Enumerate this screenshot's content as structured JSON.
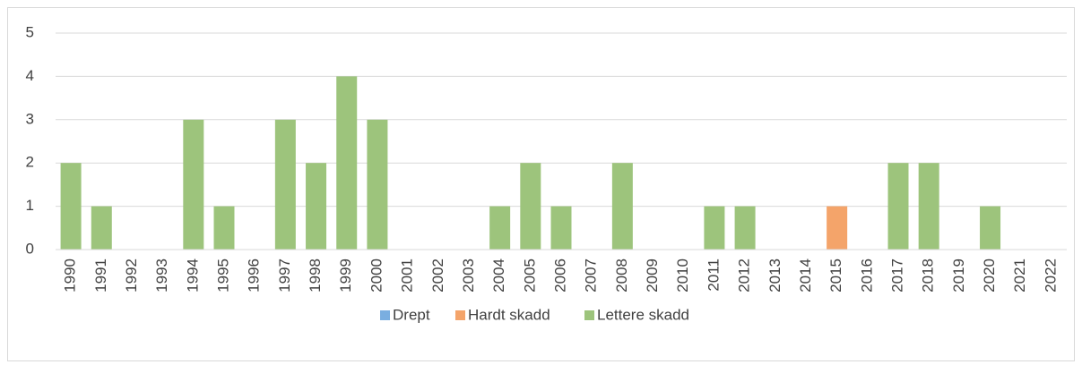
{
  "chart_data": {
    "type": "stacked_bar",
    "categories": [
      "1990",
      "1991",
      "1992",
      "1993",
      "1994",
      "1995",
      "1996",
      "1997",
      "1998",
      "1999",
      "2000",
      "2001",
      "2002",
      "2003",
      "2004",
      "2005",
      "2006",
      "2007",
      "2008",
      "2009",
      "2010",
      "2011",
      "2012",
      "2013",
      "2014",
      "2015",
      "2016",
      "2017",
      "2018",
      "2019",
      "2020",
      "2021",
      "2022"
    ],
    "series": [
      {
        "name": "Drept",
        "color": "#7aaee0",
        "values": [
          0,
          0,
          0,
          0,
          0,
          0,
          0,
          0,
          0,
          0,
          0,
          0,
          0,
          0,
          0,
          0,
          0,
          0,
          0,
          0,
          0,
          0,
          0,
          0,
          0,
          0,
          0,
          0,
          0,
          0,
          0,
          0,
          0
        ]
      },
      {
        "name": "Hardt skadd",
        "color": "#f4a46a",
        "values": [
          0,
          0,
          0,
          0,
          0,
          0,
          0,
          0,
          0,
          0,
          0,
          0,
          0,
          0,
          0,
          0,
          0,
          0,
          0,
          0,
          0,
          0,
          0,
          0,
          0,
          1,
          0,
          0,
          0,
          0,
          0,
          0,
          0
        ]
      },
      {
        "name": "Lettere skadd",
        "color": "#9dc47c",
        "values": [
          2,
          1,
          0,
          0,
          3,
          1,
          0,
          3,
          2,
          4,
          3,
          0,
          0,
          0,
          1,
          2,
          1,
          0,
          2,
          0,
          0,
          1,
          1,
          0,
          0,
          0,
          0,
          2,
          2,
          0,
          1,
          0,
          0
        ]
      }
    ],
    "ylim": [
      0,
      5
    ],
    "yticks": [
      0,
      1,
      2,
      3,
      4,
      5
    ],
    "grid": true,
    "legend": "bottom"
  }
}
